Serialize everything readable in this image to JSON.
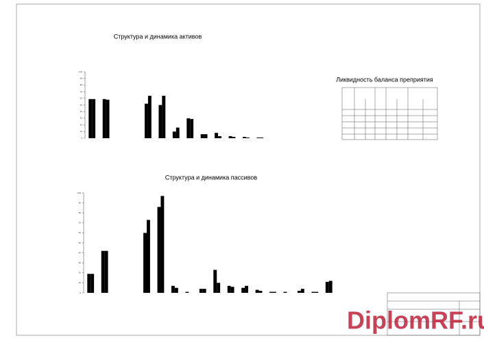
{
  "chart_data": [
    {
      "type": "bar",
      "title": "Структура и динамика активов",
      "categories": [
        null,
        null,
        null,
        null,
        null,
        null,
        null,
        null,
        null,
        null,
        null,
        null,
        null,
        null
      ],
      "series": [
        {
          "color": "#000000",
          "values": [
            59,
            59,
            0,
            0,
            52,
            50,
            10,
            30,
            6,
            8,
            3,
            2,
            1,
            0
          ]
        },
        {
          "color": "#000000",
          "values": [
            59,
            58,
            0,
            0,
            64,
            64,
            16,
            29,
            6,
            3,
            2,
            1,
            1,
            0
          ]
        }
      ],
      "ylim": [
        0,
        100
      ],
      "yticks": [
        0,
        10,
        20,
        30,
        40,
        50,
        60,
        70,
        80,
        90,
        100
      ],
      "grid": false
    },
    {
      "type": "bar",
      "title": "Структура и динамика пассивов",
      "categories": [
        null,
        null,
        null,
        null,
        null,
        null,
        null,
        null,
        null,
        null,
        null,
        null,
        null,
        null,
        null,
        null,
        null,
        null
      ],
      "series": [
        {
          "color": "#000000",
          "values": [
            19,
            42,
            0,
            0,
            60,
            86,
            7,
            1,
            4,
            23,
            7,
            5,
            3,
            1,
            1,
            2,
            1,
            11
          ]
        },
        {
          "color": "#000000",
          "values": [
            19,
            42,
            0,
            0,
            73,
            97,
            5,
            0,
            4,
            10,
            6,
            7,
            2,
            1,
            0,
            4,
            1,
            12
          ]
        }
      ],
      "ylim": [
        0,
        100
      ],
      "yticks": [
        0,
        10,
        20,
        30,
        40,
        50,
        60,
        70,
        80,
        90,
        100
      ],
      "grid": false
    }
  ],
  "table": {
    "title": "Ликвидность баланса преприятия"
  },
  "watermark": {
    "text": "DiplomRF.ru"
  }
}
